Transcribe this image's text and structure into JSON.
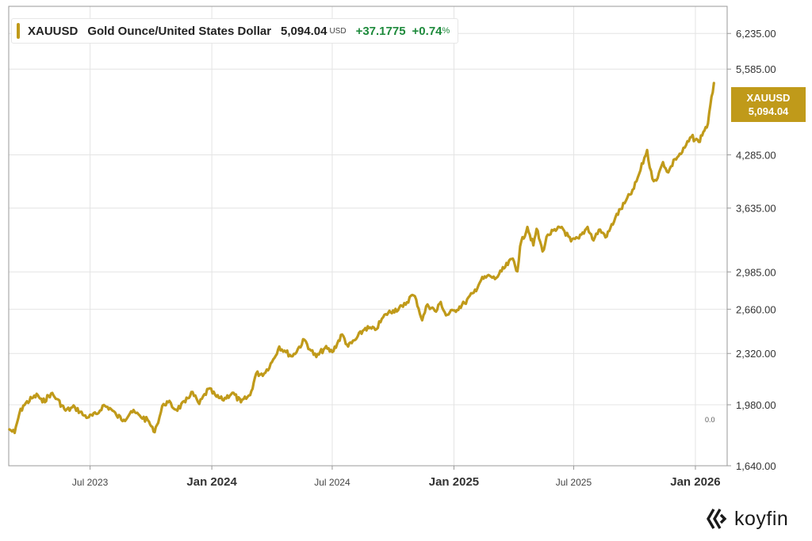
{
  "legend": {
    "ticker": "XAUUSD",
    "name": "Gold Ounce/United States Dollar",
    "price": "5,094.04",
    "unit": "USD",
    "change": "+37.1775",
    "change_pct": "+0.74",
    "pct_sign": "%"
  },
  "badge": {
    "ticker": "XAUUSD",
    "price": "5,094.04"
  },
  "brand": {
    "name": "koyfin"
  },
  "colors": {
    "line": "#c09a1a",
    "badge_bg": "#c09a1a",
    "positive": "#1e8a3c",
    "grid": "#e4e4e4"
  },
  "chart_data": {
    "type": "line",
    "title": "",
    "xlabel": "",
    "ylabel": "",
    "y_scale": "log",
    "ylim": [
      1640,
      6780
    ],
    "xlim": [
      "2023-02-28",
      "2026-02-18"
    ],
    "grid": true,
    "y_ticks": [
      {
        "value": 6235,
        "label": "6,235.00"
      },
      {
        "value": 5585,
        "label": "5,585.00"
      },
      {
        "value": 4285,
        "label": "4,285.00"
      },
      {
        "value": 3635,
        "label": "3,635.00"
      },
      {
        "value": 2985,
        "label": "2,985.00"
      },
      {
        "value": 2660,
        "label": "2,660.00"
      },
      {
        "value": 2320,
        "label": "2,320.00"
      },
      {
        "value": 1980,
        "label": "1,980.00"
      },
      {
        "value": 1640,
        "label": "1,640.00"
      }
    ],
    "x_ticks": [
      {
        "date": "2023-07-01",
        "label": "Jul 2023",
        "major": false
      },
      {
        "date": "2024-01-01",
        "label": "Jan 2024",
        "major": true
      },
      {
        "date": "2024-07-01",
        "label": "Jul 2024",
        "major": false
      },
      {
        "date": "2025-01-01",
        "label": "Jan 2025",
        "major": true
      },
      {
        "date": "2025-07-01",
        "label": "Jul 2025",
        "major": false
      },
      {
        "date": "2026-01-01",
        "label": "Jan 2026",
        "major": true
      }
    ],
    "zero_marker": "0.0",
    "series": [
      {
        "name": "XAUUSD",
        "points": [
          [
            "2023-03-01",
            1835
          ],
          [
            "2023-03-09",
            1815
          ],
          [
            "2023-03-16",
            1925
          ],
          [
            "2023-03-22",
            1975
          ],
          [
            "2023-04-04",
            2020
          ],
          [
            "2023-04-13",
            2040
          ],
          [
            "2023-04-20",
            1995
          ],
          [
            "2023-05-03",
            2050
          ],
          [
            "2023-05-12",
            2015
          ],
          [
            "2023-05-25",
            1945
          ],
          [
            "2023-06-08",
            1965
          ],
          [
            "2023-06-22",
            1915
          ],
          [
            "2023-06-29",
            1905
          ],
          [
            "2023-07-12",
            1925
          ],
          [
            "2023-07-20",
            1975
          ],
          [
            "2023-07-31",
            1960
          ],
          [
            "2023-08-10",
            1915
          ],
          [
            "2023-08-21",
            1890
          ],
          [
            "2023-09-01",
            1940
          ],
          [
            "2023-09-14",
            1915
          ],
          [
            "2023-09-28",
            1880
          ],
          [
            "2023-10-05",
            1822
          ],
          [
            "2023-10-10",
            1860
          ],
          [
            "2023-10-20",
            1985
          ],
          [
            "2023-10-27",
            1995
          ],
          [
            "2023-11-08",
            1950
          ],
          [
            "2023-11-22",
            1995
          ],
          [
            "2023-12-01",
            2060
          ],
          [
            "2023-12-13",
            1985
          ],
          [
            "2023-12-27",
            2080
          ],
          [
            "2024-01-08",
            2030
          ],
          [
            "2024-01-17",
            2010
          ],
          [
            "2024-02-01",
            2055
          ],
          [
            "2024-02-14",
            1995
          ],
          [
            "2024-02-28",
            2040
          ],
          [
            "2024-03-08",
            2180
          ],
          [
            "2024-03-20",
            2180
          ],
          [
            "2024-04-01",
            2260
          ],
          [
            "2024-04-12",
            2370
          ],
          [
            "2024-04-22",
            2330
          ],
          [
            "2024-05-02",
            2300
          ],
          [
            "2024-05-20",
            2420
          ],
          [
            "2024-05-30",
            2340
          ],
          [
            "2024-06-07",
            2295
          ],
          [
            "2024-06-20",
            2360
          ],
          [
            "2024-07-01",
            2330
          ],
          [
            "2024-07-16",
            2460
          ],
          [
            "2024-07-25",
            2370
          ],
          [
            "2024-08-05",
            2420
          ],
          [
            "2024-08-20",
            2510
          ],
          [
            "2024-09-04",
            2495
          ],
          [
            "2024-09-20",
            2620
          ],
          [
            "2024-10-01",
            2650
          ],
          [
            "2024-10-16",
            2680
          ],
          [
            "2024-10-30",
            2780
          ],
          [
            "2024-11-05",
            2740
          ],
          [
            "2024-11-14",
            2570
          ],
          [
            "2024-11-22",
            2700
          ],
          [
            "2024-12-05",
            2640
          ],
          [
            "2024-12-12",
            2720
          ],
          [
            "2024-12-20",
            2610
          ],
          [
            "2025-01-02",
            2650
          ],
          [
            "2025-01-17",
            2710
          ],
          [
            "2025-01-31",
            2800
          ],
          [
            "2025-02-11",
            2910
          ],
          [
            "2025-02-24",
            2950
          ],
          [
            "2025-03-04",
            2920
          ],
          [
            "2025-03-14",
            2990
          ],
          [
            "2025-03-31",
            3110
          ],
          [
            "2025-04-07",
            2990
          ],
          [
            "2025-04-11",
            3230
          ],
          [
            "2025-04-22",
            3430
          ],
          [
            "2025-05-01",
            3240
          ],
          [
            "2025-05-06",
            3410
          ],
          [
            "2025-05-15",
            3180
          ],
          [
            "2025-05-23",
            3350
          ],
          [
            "2025-06-04",
            3390
          ],
          [
            "2025-06-13",
            3430
          ],
          [
            "2025-06-27",
            3280
          ],
          [
            "2025-07-09",
            3310
          ],
          [
            "2025-07-22",
            3430
          ],
          [
            "2025-07-31",
            3290
          ],
          [
            "2025-08-08",
            3400
          ],
          [
            "2025-08-20",
            3330
          ],
          [
            "2025-09-02",
            3530
          ],
          [
            "2025-09-16",
            3690
          ],
          [
            "2025-09-30",
            3860
          ],
          [
            "2025-10-08",
            4040
          ],
          [
            "2025-10-20",
            4350
          ],
          [
            "2025-10-24",
            4120
          ],
          [
            "2025-10-28",
            3980
          ],
          [
            "2025-11-05",
            3990
          ],
          [
            "2025-11-13",
            4190
          ],
          [
            "2025-11-21",
            4060
          ],
          [
            "2025-12-01",
            4230
          ],
          [
            "2025-12-12",
            4320
          ],
          [
            "2025-12-26",
            4530
          ],
          [
            "2026-01-06",
            4460
          ],
          [
            "2026-01-13",
            4600
          ],
          [
            "2026-01-20",
            4720
          ],
          [
            "2026-01-29",
            5350
          ]
        ]
      }
    ]
  }
}
